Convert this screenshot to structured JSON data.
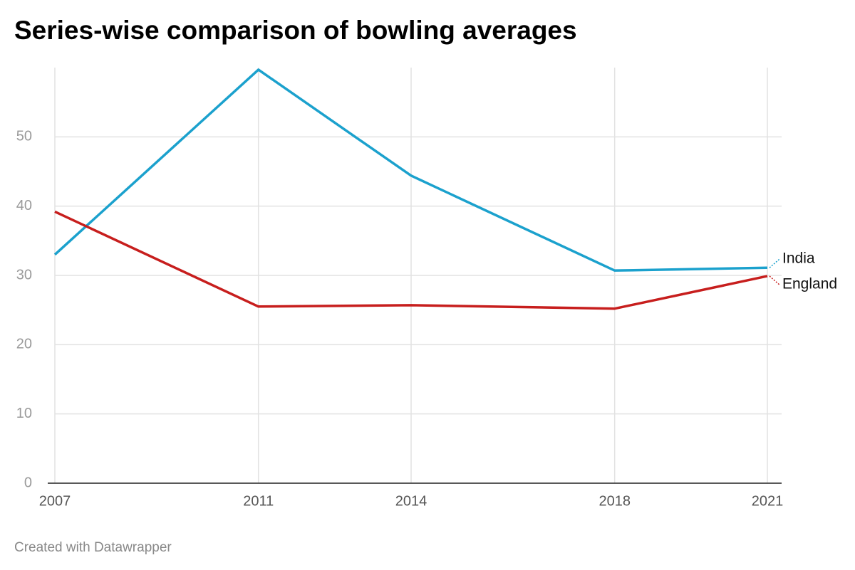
{
  "chart_data": {
    "type": "line",
    "title": "Series-wise comparison of bowling averages",
    "footer": "Created with Datawrapper",
    "x": [
      2007,
      2011,
      2014,
      2018,
      2021
    ],
    "xlim": [
      2007,
      2021
    ],
    "xticks": [
      2007,
      2011,
      2014,
      2018,
      2021
    ],
    "ylim": [
      0,
      60
    ],
    "yticks": [
      0,
      10,
      20,
      30,
      40,
      50
    ],
    "grid": true,
    "series": [
      {
        "name": "India",
        "color": "#1ba1cd",
        "values": [
          33.0,
          59.7,
          44.4,
          30.7,
          31.1
        ]
      },
      {
        "name": "England",
        "color": "#c71e1d",
        "values": [
          39.2,
          25.5,
          25.7,
          25.2,
          29.9
        ]
      }
    ]
  }
}
